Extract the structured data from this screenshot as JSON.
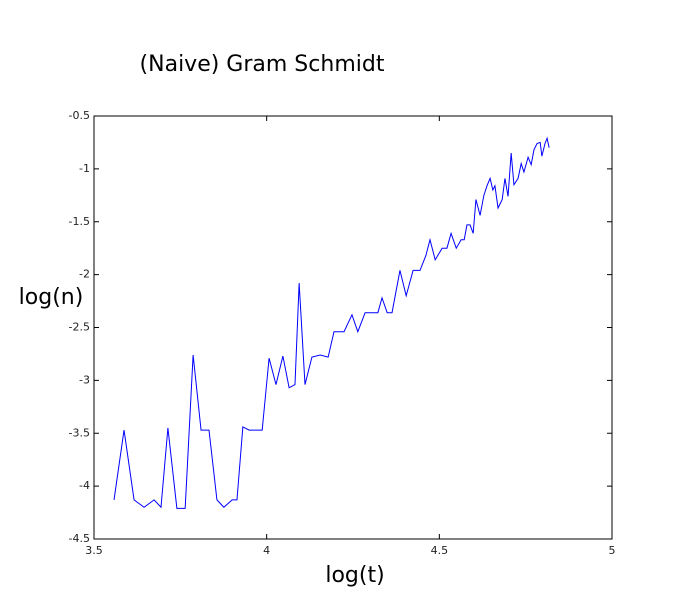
{
  "chart_data": {
    "type": "line",
    "title": "(Naive) Gram Schmidt",
    "xlabel": "log(t)",
    "ylabel": "log(n)",
    "xlim": [
      3.5,
      5
    ],
    "ylim": [
      -4.5,
      -0.5
    ],
    "xticks": [
      3.5,
      4,
      4.5,
      5
    ],
    "yticks": [
      -4.5,
      -4,
      -3.5,
      -3,
      -2.5,
      -2,
      -1.5,
      -1,
      -0.5
    ],
    "grid": false,
    "series": [
      {
        "name": "log(n)",
        "color": "#0000ff",
        "x": [
          3.558,
          3.587,
          3.616,
          3.645,
          3.674,
          3.694,
          3.714,
          3.74,
          3.764,
          3.787,
          3.81,
          3.833,
          3.856,
          3.876,
          3.9,
          3.914,
          3.931,
          3.949,
          3.987,
          4.007,
          4.027,
          4.047,
          4.065,
          4.082,
          4.094,
          4.111,
          4.131,
          4.155,
          4.178,
          4.195,
          4.224,
          4.247,
          4.264,
          4.285,
          4.302,
          4.322,
          4.334,
          4.349,
          4.363,
          4.386,
          4.404,
          4.424,
          4.444,
          4.461,
          4.473,
          4.488,
          4.508,
          4.522,
          4.534,
          4.549,
          4.563,
          4.572,
          4.58,
          4.589,
          4.598,
          4.606,
          4.618,
          4.629,
          4.638,
          4.647,
          4.655,
          4.661,
          4.67,
          4.682,
          4.69,
          4.699,
          4.708,
          4.716,
          4.728,
          4.737,
          4.745,
          4.757,
          4.766,
          4.774,
          4.783,
          4.792,
          4.797,
          4.806,
          4.812,
          4.818
        ],
        "values": [
          -4.13,
          -3.47,
          -4.13,
          -4.2,
          -4.13,
          -4.2,
          -3.45,
          -4.21,
          -4.21,
          -2.76,
          -3.47,
          -3.47,
          -4.13,
          -4.2,
          -4.13,
          -4.13,
          -3.44,
          -3.47,
          -3.47,
          -2.79,
          -3.04,
          -2.77,
          -3.07,
          -3.04,
          -2.08,
          -3.04,
          -2.78,
          -2.76,
          -2.78,
          -2.54,
          -2.54,
          -2.38,
          -2.54,
          -2.36,
          -2.36,
          -2.36,
          -2.22,
          -2.36,
          -2.36,
          -1.96,
          -2.2,
          -1.96,
          -1.96,
          -1.82,
          -1.67,
          -1.86,
          -1.75,
          -1.75,
          -1.61,
          -1.75,
          -1.67,
          -1.67,
          -1.53,
          -1.53,
          -1.61,
          -1.29,
          -1.44,
          -1.25,
          -1.16,
          -1.09,
          -1.2,
          -1.16,
          -1.37,
          -1.29,
          -1.09,
          -1.26,
          -0.85,
          -1.15,
          -1.09,
          -0.95,
          -1.03,
          -0.89,
          -0.96,
          -0.82,
          -0.76,
          -0.75,
          -0.88,
          -0.76,
          -0.71,
          -0.8
        ]
      }
    ]
  }
}
